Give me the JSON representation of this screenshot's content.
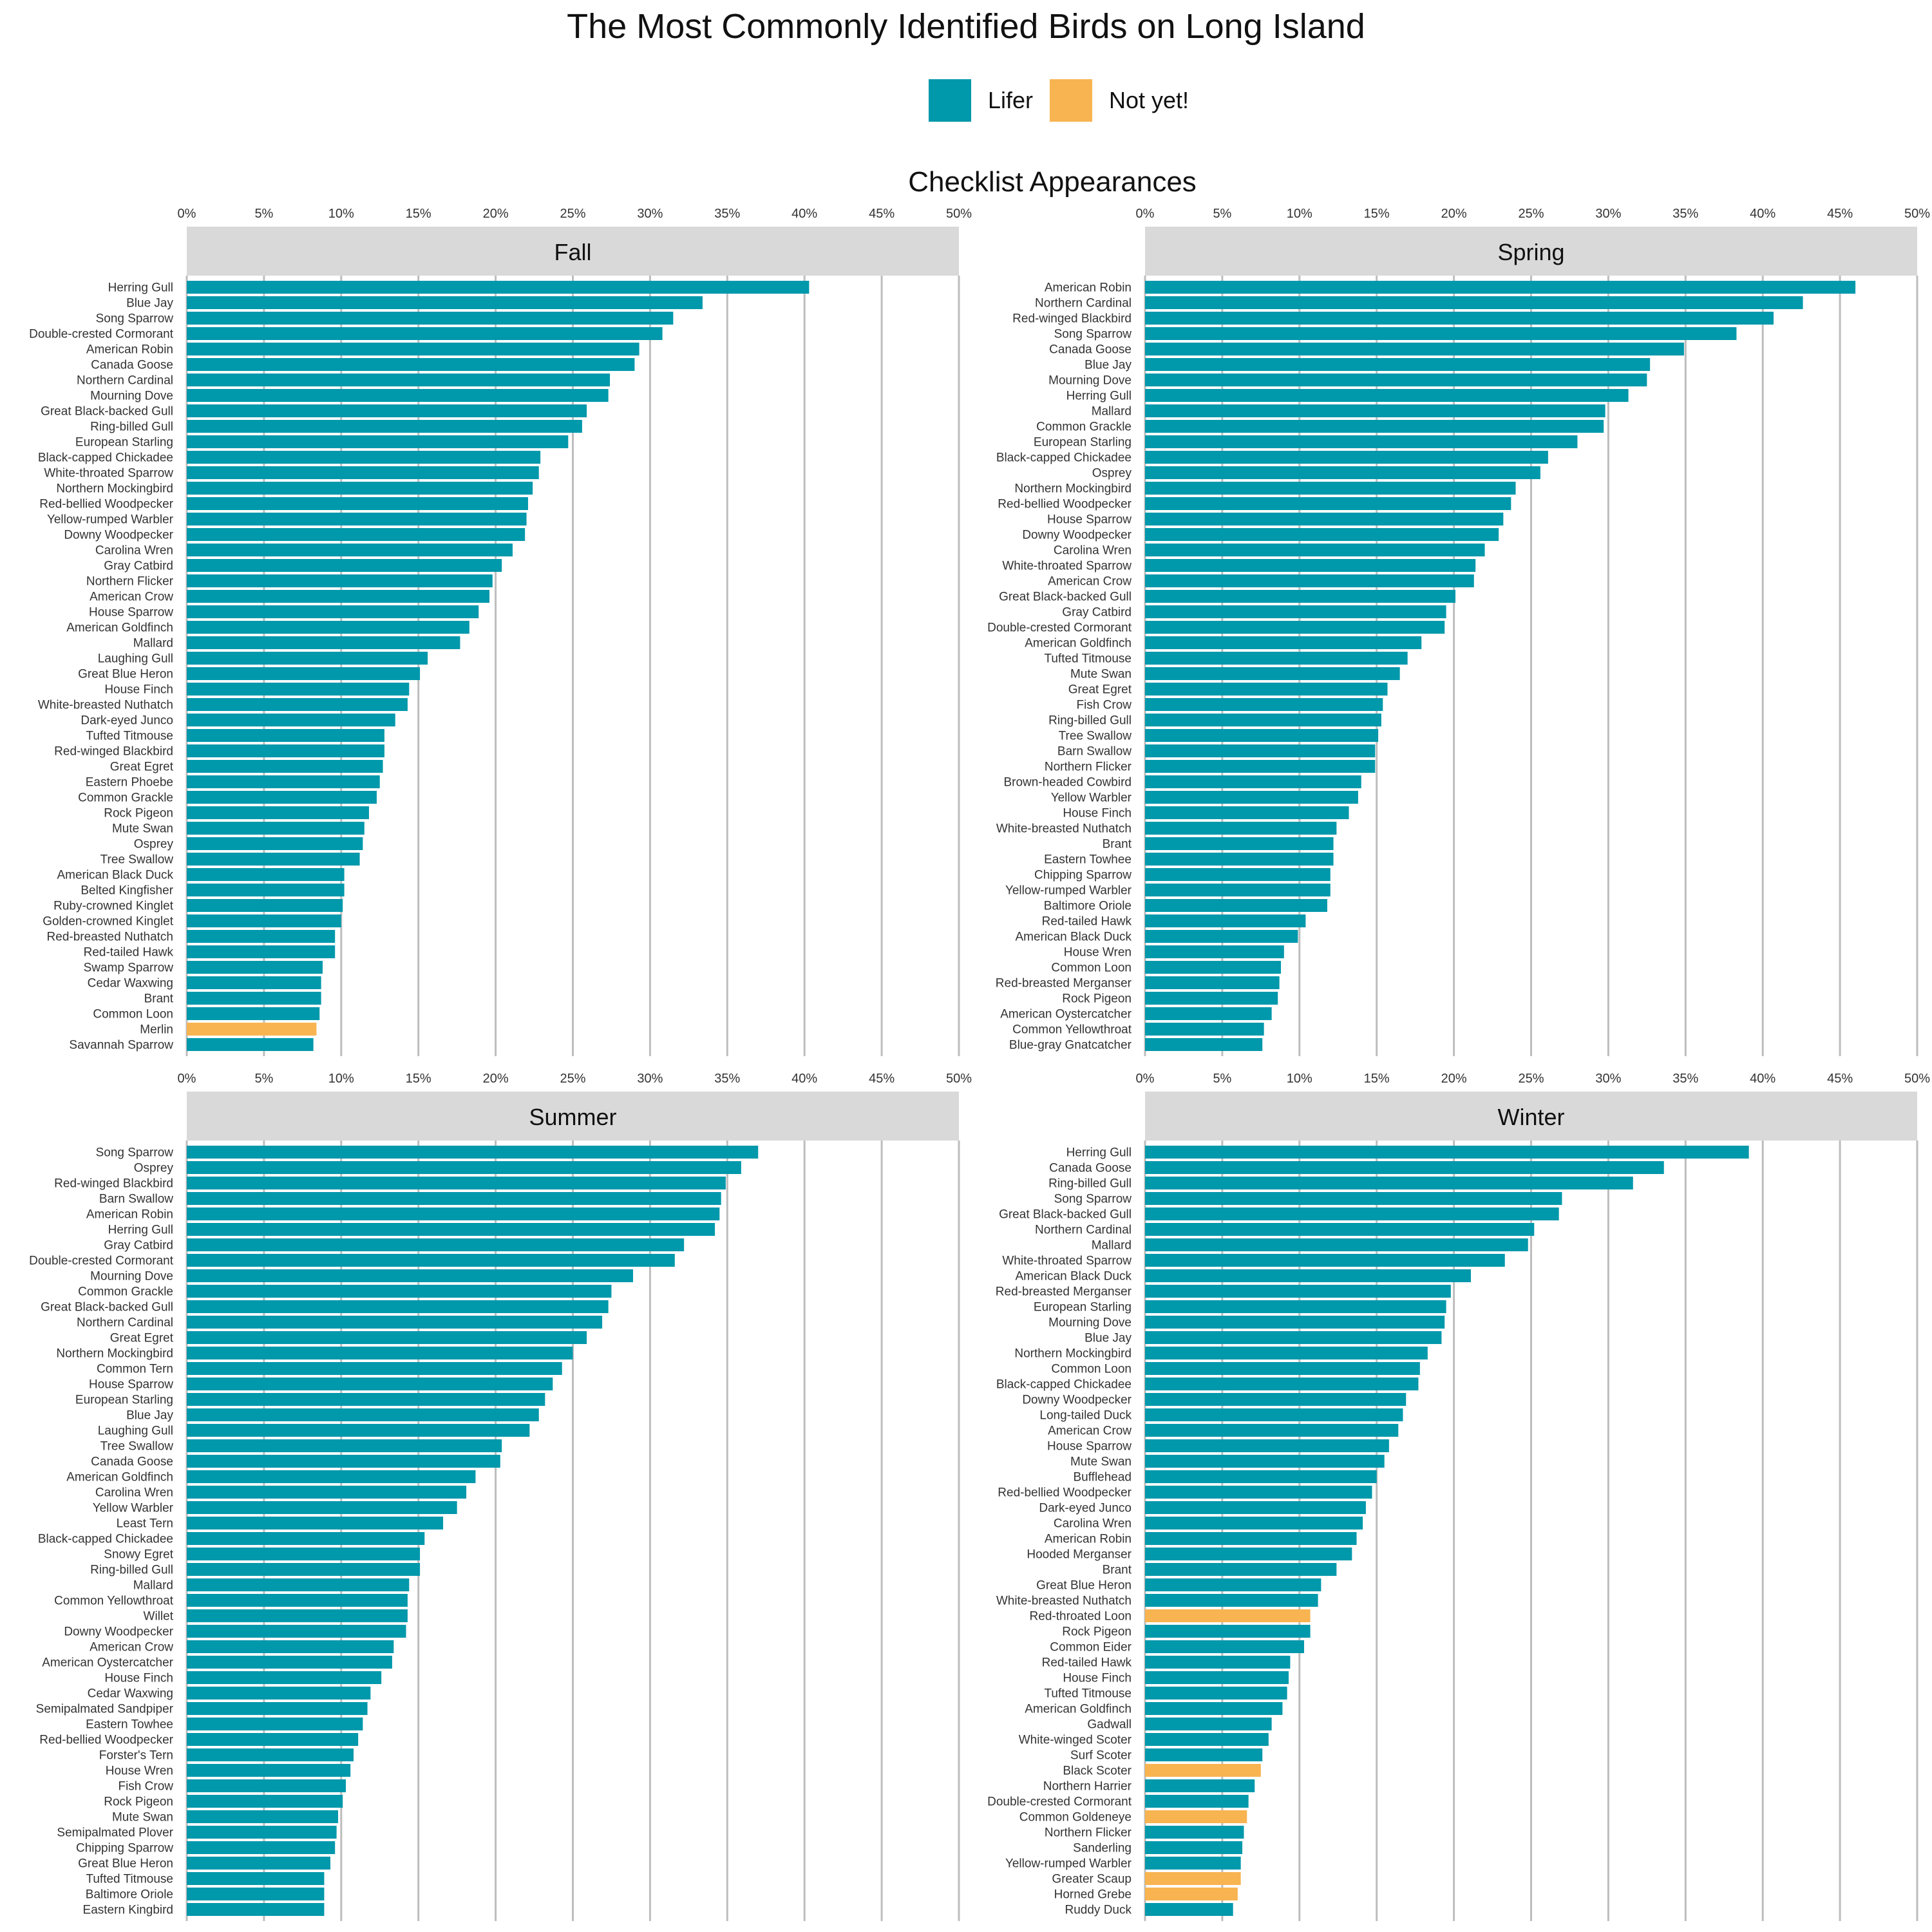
{
  "chart_title": "The Most Commonly Identified Birds on Long Island",
  "x_axis_title": "Checklist Appearances",
  "legend": [
    {
      "label": "Lifer",
      "color": "#0098ab"
    },
    {
      "label": "Not yet!",
      "color": "#f8b451"
    }
  ],
  "chart_data": {
    "type": "bar",
    "orientation": "horizontal",
    "facet_order": [
      "Fall",
      "Spring",
      "Summer",
      "Winter"
    ],
    "xlim": [
      0,
      50
    ],
    "x_ticks": [
      "0%",
      "5%",
      "10%",
      "15%",
      "20%",
      "25%",
      "30%",
      "35%",
      "40%",
      "45%",
      "50%"
    ],
    "grid": "vertical",
    "legend_position": "top",
    "colors": {
      "Lifer": "#0098ab",
      "Not yet!": "#f8b451"
    },
    "panels": [
      {
        "title": "Fall",
        "categories": [
          "Herring Gull",
          "Blue Jay",
          "Song Sparrow",
          "Double-crested Cormorant",
          "American Robin",
          "Canada Goose",
          "Northern Cardinal",
          "Mourning Dove",
          "Great Black-backed Gull",
          "Ring-billed Gull",
          "European Starling",
          "Black-capped Chickadee",
          "White-throated Sparrow",
          "Northern Mockingbird",
          "Red-bellied Woodpecker",
          "Yellow-rumped Warbler",
          "Downy Woodpecker",
          "Carolina Wren",
          "Gray Catbird",
          "Northern Flicker",
          "American Crow",
          "House Sparrow",
          "American Goldfinch",
          "Mallard",
          "Laughing Gull",
          "Great Blue Heron",
          "House Finch",
          "White-breasted Nuthatch",
          "Dark-eyed Junco",
          "Tufted Titmouse",
          "Red-winged Blackbird",
          "Great Egret",
          "Eastern Phoebe",
          "Common Grackle",
          "Rock Pigeon",
          "Mute Swan",
          "Osprey",
          "Tree Swallow",
          "American Black Duck",
          "Belted Kingfisher",
          "Ruby-crowned Kinglet",
          "Golden-crowned Kinglet",
          "Red-breasted Nuthatch",
          "Red-tailed Hawk",
          "Swamp Sparrow",
          "Cedar Waxwing",
          "Brant",
          "Common Loon",
          "Merlin",
          "Savannah Sparrow"
        ],
        "values": [
          40.3,
          33.4,
          31.5,
          30.8,
          29.3,
          29.0,
          27.4,
          27.3,
          25.9,
          25.6,
          24.7,
          22.9,
          22.8,
          22.4,
          22.1,
          22.0,
          21.9,
          21.1,
          20.4,
          19.8,
          19.6,
          18.9,
          18.3,
          17.7,
          15.6,
          15.1,
          14.4,
          14.3,
          13.5,
          12.8,
          12.8,
          12.7,
          12.5,
          12.3,
          11.8,
          11.5,
          11.4,
          11.2,
          10.2,
          10.2,
          10.1,
          10.0,
          9.6,
          9.6,
          8.8,
          8.7,
          8.7,
          8.6,
          8.4,
          8.2
        ],
        "status": [
          "Lifer",
          "Lifer",
          "Lifer",
          "Lifer",
          "Lifer",
          "Lifer",
          "Lifer",
          "Lifer",
          "Lifer",
          "Lifer",
          "Lifer",
          "Lifer",
          "Lifer",
          "Lifer",
          "Lifer",
          "Lifer",
          "Lifer",
          "Lifer",
          "Lifer",
          "Lifer",
          "Lifer",
          "Lifer",
          "Lifer",
          "Lifer",
          "Lifer",
          "Lifer",
          "Lifer",
          "Lifer",
          "Lifer",
          "Lifer",
          "Lifer",
          "Lifer",
          "Lifer",
          "Lifer",
          "Lifer",
          "Lifer",
          "Lifer",
          "Lifer",
          "Lifer",
          "Lifer",
          "Lifer",
          "Lifer",
          "Lifer",
          "Lifer",
          "Lifer",
          "Lifer",
          "Lifer",
          "Lifer",
          "Not yet!",
          "Lifer"
        ]
      },
      {
        "title": "Spring",
        "categories": [
          "American Robin",
          "Northern Cardinal",
          "Red-winged Blackbird",
          "Song Sparrow",
          "Canada Goose",
          "Blue Jay",
          "Mourning Dove",
          "Herring Gull",
          "Mallard",
          "Common Grackle",
          "European Starling",
          "Black-capped Chickadee",
          "Osprey",
          "Northern Mockingbird",
          "Red-bellied Woodpecker",
          "House Sparrow",
          "Downy Woodpecker",
          "Carolina Wren",
          "White-throated Sparrow",
          "American Crow",
          "Great Black-backed Gull",
          "Gray Catbird",
          "Double-crested Cormorant",
          "American Goldfinch",
          "Tufted Titmouse",
          "Mute Swan",
          "Great Egret",
          "Fish Crow",
          "Ring-billed Gull",
          "Tree Swallow",
          "Barn Swallow",
          "Northern Flicker",
          "Brown-headed Cowbird",
          "Yellow Warbler",
          "House Finch",
          "White-breasted Nuthatch",
          "Brant",
          "Eastern Towhee",
          "Chipping Sparrow",
          "Yellow-rumped Warbler",
          "Baltimore Oriole",
          "Red-tailed Hawk",
          "American Black Duck",
          "House Wren",
          "Common Loon",
          "Red-breasted Merganser",
          "Rock Pigeon",
          "American Oystercatcher",
          "Common Yellowthroat",
          "Blue-gray Gnatcatcher"
        ],
        "values": [
          46.0,
          42.6,
          40.7,
          38.3,
          34.9,
          32.7,
          32.5,
          31.3,
          29.8,
          29.7,
          28.0,
          26.1,
          25.6,
          24.0,
          23.7,
          23.2,
          22.9,
          22.0,
          21.4,
          21.3,
          20.1,
          19.5,
          19.4,
          17.9,
          17.0,
          16.5,
          15.7,
          15.4,
          15.3,
          15.1,
          14.9,
          14.9,
          14.0,
          13.8,
          13.2,
          12.4,
          12.2,
          12.2,
          12.0,
          12.0,
          11.8,
          10.4,
          9.9,
          9.0,
          8.8,
          8.7,
          8.6,
          8.2,
          7.7,
          7.6
        ],
        "status": [
          "Lifer",
          "Lifer",
          "Lifer",
          "Lifer",
          "Lifer",
          "Lifer",
          "Lifer",
          "Lifer",
          "Lifer",
          "Lifer",
          "Lifer",
          "Lifer",
          "Lifer",
          "Lifer",
          "Lifer",
          "Lifer",
          "Lifer",
          "Lifer",
          "Lifer",
          "Lifer",
          "Lifer",
          "Lifer",
          "Lifer",
          "Lifer",
          "Lifer",
          "Lifer",
          "Lifer",
          "Lifer",
          "Lifer",
          "Lifer",
          "Lifer",
          "Lifer",
          "Lifer",
          "Lifer",
          "Lifer",
          "Lifer",
          "Lifer",
          "Lifer",
          "Lifer",
          "Lifer",
          "Lifer",
          "Lifer",
          "Lifer",
          "Lifer",
          "Lifer",
          "Lifer",
          "Lifer",
          "Lifer",
          "Lifer",
          "Lifer"
        ]
      },
      {
        "title": "Summer",
        "categories": [
          "Song Sparrow",
          "Osprey",
          "Red-winged Blackbird",
          "Barn Swallow",
          "American Robin",
          "Herring Gull",
          "Gray Catbird",
          "Double-crested Cormorant",
          "Mourning Dove",
          "Common Grackle",
          "Great Black-backed Gull",
          "Northern Cardinal",
          "Great Egret",
          "Northern Mockingbird",
          "Common Tern",
          "House Sparrow",
          "European Starling",
          "Blue Jay",
          "Laughing Gull",
          "Tree Swallow",
          "Canada Goose",
          "American Goldfinch",
          "Carolina Wren",
          "Yellow Warbler",
          "Least Tern",
          "Black-capped Chickadee",
          "Snowy Egret",
          "Ring-billed Gull",
          "Mallard",
          "Common Yellowthroat",
          "Willet",
          "Downy Woodpecker",
          "American Crow",
          "American Oystercatcher",
          "House Finch",
          "Cedar Waxwing",
          "Semipalmated Sandpiper",
          "Eastern Towhee",
          "Red-bellied Woodpecker",
          "Forster's Tern",
          "House Wren",
          "Fish Crow",
          "Rock Pigeon",
          "Mute Swan",
          "Semipalmated Plover",
          "Chipping Sparrow",
          "Great Blue Heron",
          "Tufted Titmouse",
          "Baltimore Oriole",
          "Eastern Kingbird"
        ],
        "values": [
          37.0,
          35.9,
          34.9,
          34.6,
          34.5,
          34.2,
          32.2,
          31.6,
          28.9,
          27.5,
          27.3,
          26.9,
          25.9,
          25.0,
          24.3,
          23.7,
          23.2,
          22.8,
          22.2,
          20.4,
          20.3,
          18.7,
          18.1,
          17.5,
          16.6,
          15.4,
          15.1,
          15.1,
          14.4,
          14.3,
          14.3,
          14.2,
          13.4,
          13.3,
          12.6,
          11.9,
          11.7,
          11.4,
          11.1,
          10.8,
          10.6,
          10.3,
          10.1,
          9.8,
          9.7,
          9.6,
          9.3,
          8.9,
          8.9,
          8.9
        ],
        "status": [
          "Lifer",
          "Lifer",
          "Lifer",
          "Lifer",
          "Lifer",
          "Lifer",
          "Lifer",
          "Lifer",
          "Lifer",
          "Lifer",
          "Lifer",
          "Lifer",
          "Lifer",
          "Lifer",
          "Lifer",
          "Lifer",
          "Lifer",
          "Lifer",
          "Lifer",
          "Lifer",
          "Lifer",
          "Lifer",
          "Lifer",
          "Lifer",
          "Lifer",
          "Lifer",
          "Lifer",
          "Lifer",
          "Lifer",
          "Lifer",
          "Lifer",
          "Lifer",
          "Lifer",
          "Lifer",
          "Lifer",
          "Lifer",
          "Lifer",
          "Lifer",
          "Lifer",
          "Lifer",
          "Lifer",
          "Lifer",
          "Lifer",
          "Lifer",
          "Lifer",
          "Lifer",
          "Lifer",
          "Lifer",
          "Lifer",
          "Lifer"
        ]
      },
      {
        "title": "Winter",
        "categories": [
          "Herring Gull",
          "Canada Goose",
          "Ring-billed Gull",
          "Song Sparrow",
          "Great Black-backed Gull",
          "Northern Cardinal",
          "Mallard",
          "White-throated Sparrow",
          "American Black Duck",
          "Red-breasted Merganser",
          "European Starling",
          "Mourning Dove",
          "Blue Jay",
          "Northern Mockingbird",
          "Common Loon",
          "Black-capped Chickadee",
          "Downy Woodpecker",
          "Long-tailed Duck",
          "American Crow",
          "House Sparrow",
          "Mute Swan",
          "Bufflehead",
          "Red-bellied Woodpecker",
          "Dark-eyed Junco",
          "Carolina Wren",
          "American Robin",
          "Hooded Merganser",
          "Brant",
          "Great Blue Heron",
          "White-breasted Nuthatch",
          "Red-throated Loon",
          "Rock Pigeon",
          "Common Eider",
          "Red-tailed Hawk",
          "House Finch",
          "Tufted Titmouse",
          "American Goldfinch",
          "Gadwall",
          "White-winged Scoter",
          "Surf Scoter",
          "Black Scoter",
          "Northern Harrier",
          "Double-crested Cormorant",
          "Common Goldeneye",
          "Northern Flicker",
          "Sanderling",
          "Yellow-rumped Warbler",
          "Greater Scaup",
          "Horned Grebe",
          "Ruddy Duck"
        ],
        "values": [
          39.1,
          33.6,
          31.6,
          27.0,
          26.8,
          25.2,
          24.8,
          23.3,
          21.1,
          19.8,
          19.5,
          19.4,
          19.2,
          18.3,
          17.8,
          17.7,
          16.9,
          16.7,
          16.4,
          15.8,
          15.5,
          15.0,
          14.7,
          14.3,
          14.1,
          13.7,
          13.4,
          12.4,
          11.4,
          11.2,
          10.7,
          10.7,
          10.3,
          9.4,
          9.3,
          9.2,
          8.9,
          8.2,
          8.0,
          7.6,
          7.5,
          7.1,
          6.7,
          6.6,
          6.4,
          6.3,
          6.2,
          6.2,
          6.0,
          5.7
        ],
        "status": [
          "Lifer",
          "Lifer",
          "Lifer",
          "Lifer",
          "Lifer",
          "Lifer",
          "Lifer",
          "Lifer",
          "Lifer",
          "Lifer",
          "Lifer",
          "Lifer",
          "Lifer",
          "Lifer",
          "Lifer",
          "Lifer",
          "Lifer",
          "Lifer",
          "Lifer",
          "Lifer",
          "Lifer",
          "Lifer",
          "Lifer",
          "Lifer",
          "Lifer",
          "Lifer",
          "Lifer",
          "Lifer",
          "Lifer",
          "Lifer",
          "Not yet!",
          "Lifer",
          "Lifer",
          "Lifer",
          "Lifer",
          "Lifer",
          "Lifer",
          "Lifer",
          "Lifer",
          "Lifer",
          "Not yet!",
          "Lifer",
          "Lifer",
          "Not yet!",
          "Lifer",
          "Lifer",
          "Lifer",
          "Not yet!",
          "Not yet!",
          "Lifer"
        ]
      }
    ]
  }
}
